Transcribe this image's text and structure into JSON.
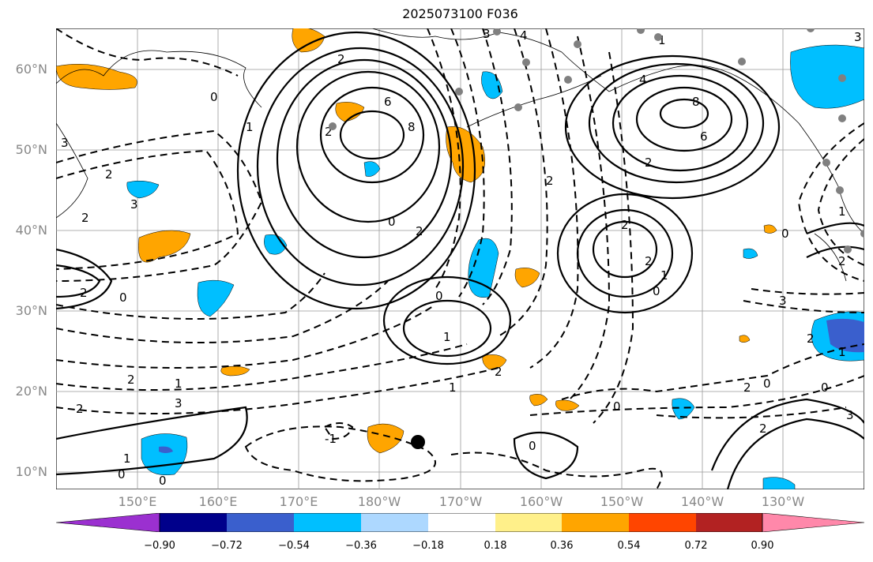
{
  "title": "2025073100 F036",
  "lat_labels": [
    "60°N",
    "50°N",
    "40°N",
    "30°N",
    "20°N",
    "10°N"
  ],
  "lon_labels": [
    "150°E",
    "160°E",
    "170°E",
    "180°W",
    "170°W",
    "160°W",
    "150°W",
    "140°W",
    "130°W"
  ],
  "colorbar": {
    "labels": [
      "−0.90",
      "−0.72",
      "−0.54",
      "−0.36",
      "−0.18",
      "0.18",
      "0.36",
      "0.54",
      "0.72",
      "0.90"
    ],
    "colors": [
      "#9b30d0",
      "#00008b",
      "#3a5fcd",
      "#00bfff",
      "#add8ff",
      "#ffffff",
      "#fff08a",
      "#ffa500",
      "#ff4500",
      "#b22222",
      "#ff88aa"
    ]
  },
  "contour_labels": [
    "3",
    "4",
    "3",
    "2",
    "6",
    "8",
    "2",
    "0",
    "1",
    "2",
    "3",
    "2",
    "2",
    "1",
    "0",
    "1",
    "2",
    "3",
    "3",
    "2",
    "2",
    "1",
    "0",
    "2",
    "1",
    "4",
    "8",
    "6",
    "2",
    "2",
    "2",
    "1",
    "0",
    "0",
    "1",
    "2",
    "2",
    "0",
    "3",
    "2",
    "1",
    "0",
    "-1",
    "0",
    "0",
    "0",
    "0",
    "3",
    "2",
    "2",
    "1",
    "0"
  ],
  "anomaly_colors": {
    "positive": "#ffa500",
    "negative": "#00bfff",
    "strong_negative": "#3a5fcd",
    "point": "#000000",
    "station": "#808080"
  }
}
